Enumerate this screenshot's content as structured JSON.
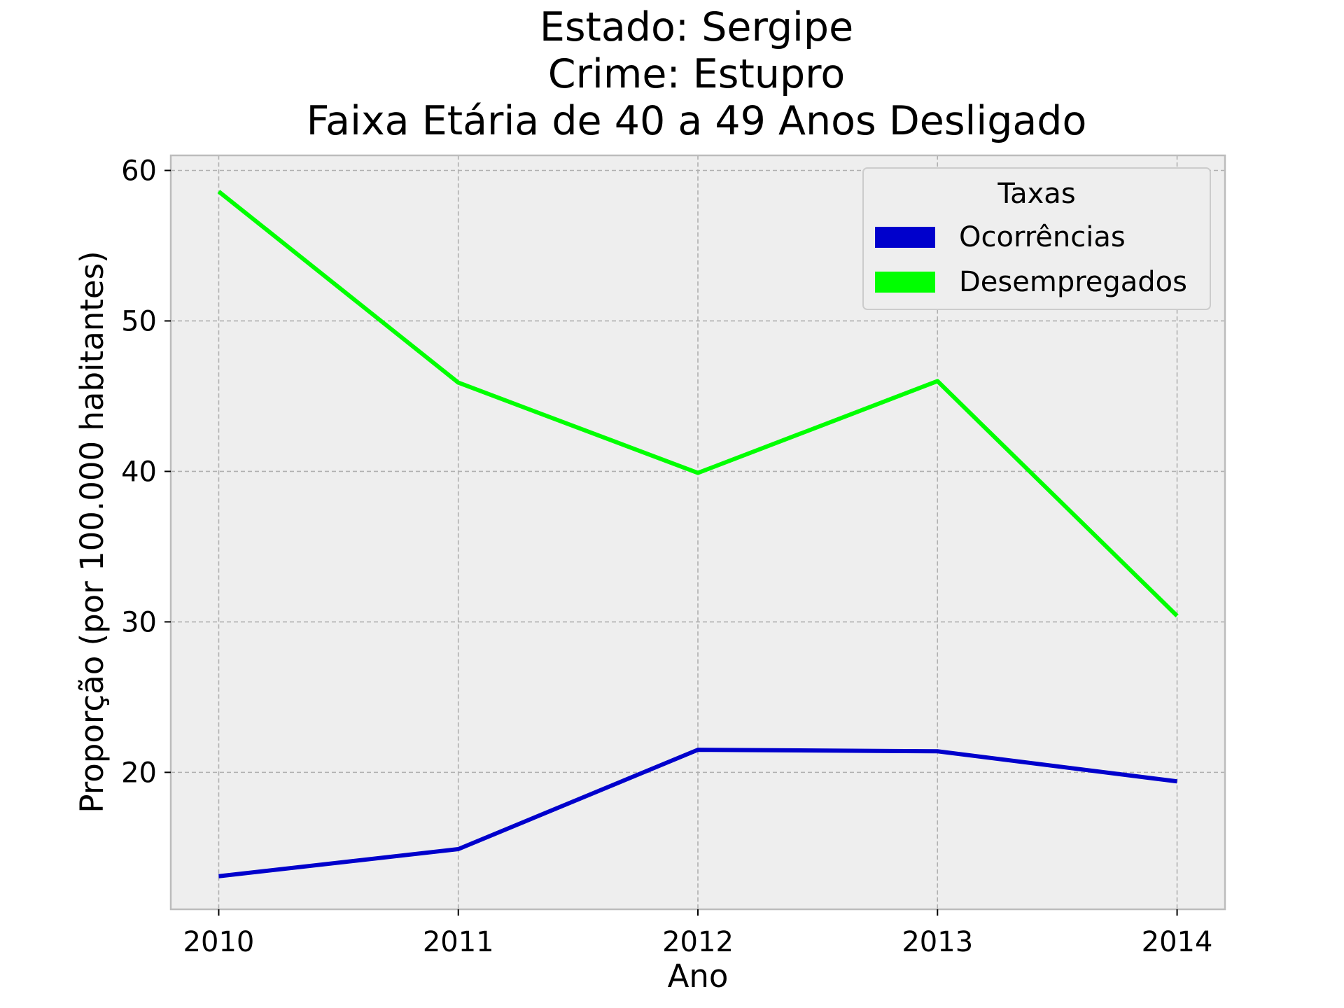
{
  "chart_data": {
    "type": "line",
    "title_lines": [
      "Estado: Sergipe",
      "Crime: Estupro",
      "Faixa Etária de 40 a 49 Anos   Desligado"
    ],
    "xlabel": "Ano",
    "ylabel": "Proporção (por 100.000 habitantes)",
    "x": [
      2010,
      2011,
      2012,
      2013,
      2014
    ],
    "x_tick_labels": [
      "2010",
      "2011",
      "2012",
      "2013",
      "2014"
    ],
    "y_ticks": [
      20,
      30,
      40,
      50,
      60
    ],
    "y_tick_labels": [
      "20",
      "30",
      "40",
      "50",
      "60"
    ],
    "xlim": [
      2009.8,
      2014.2
    ],
    "ylim": [
      10.9,
      61
    ],
    "grid": true,
    "legend": {
      "title": "Taxas",
      "placement": "top-right",
      "entries": [
        "Ocorrências",
        "Desempregados"
      ]
    },
    "series": [
      {
        "name": "Ocorrências",
        "color": "#0000cc",
        "values": [
          13.1,
          14.9,
          21.5,
          21.4,
          19.4
        ]
      },
      {
        "name": "Desempregados",
        "color": "#00ff00",
        "values": [
          58.6,
          45.9,
          39.9,
          46.0,
          30.4
        ]
      }
    ],
    "colors": {
      "plot_background": "#eeeeee",
      "grid": "#b0b0b0",
      "axes_edge": "#bcbcbc"
    }
  }
}
